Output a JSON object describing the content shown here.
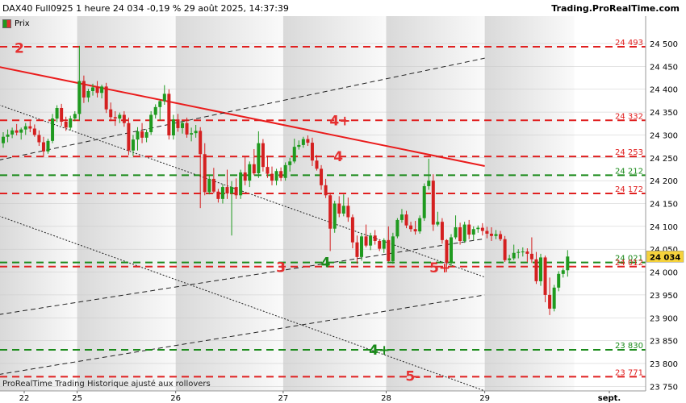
{
  "header": {
    "title": "DAX40 Full0925 1 heure 24 034 -0,19 % 29 août 2025, 14:37:39",
    "brand": "Trading.ProRealTime.com",
    "legend_label": "Prix"
  },
  "footer": {
    "text": "ProRealTime Trading  Historique ajusté aux rollovers"
  },
  "colors": {
    "up": "#1f9a1f",
    "down": "#d42020",
    "red_level": "#e02020",
    "green_level": "#1a8a1a"
  },
  "chart_data": {
    "type": "candlestick",
    "x_labels": [
      "22",
      "25",
      "26",
      "27",
      "28",
      "29",
      "sept."
    ],
    "y_ticks": [
      "24 500",
      "24 450",
      "24 400",
      "24 350",
      "24 300",
      "24 250",
      "24 200",
      "24 150",
      "24 100",
      "24 050",
      "24 000",
      "23 950",
      "23 900",
      "23 850",
      "23 800",
      "23 750"
    ],
    "ylim": [
      23740,
      24560
    ],
    "last_price": {
      "label": "24 034",
      "value": 24034
    },
    "horizontal_levels": [
      {
        "value": 24493,
        "label": "24 493",
        "color": "red"
      },
      {
        "value": 24332,
        "label": "24 332",
        "color": "red"
      },
      {
        "value": 24253,
        "label": "24 253",
        "color": "red"
      },
      {
        "value": 24212,
        "label": "24 212",
        "color": "green"
      },
      {
        "value": 24172,
        "label": "24 172",
        "color": "red"
      },
      {
        "value": 24021,
        "label": "24 021",
        "color": "green"
      },
      {
        "value": 24012,
        "label": "24 012",
        "color": "red"
      },
      {
        "value": 23830,
        "label": "23 830",
        "color": "green"
      },
      {
        "value": 23771,
        "label": "23 771",
        "color": "red"
      }
    ],
    "annotations": [
      {
        "text": "2",
        "color": "red",
        "x": 3.6,
        "y": 24490
      },
      {
        "text": "4+",
        "color": "red",
        "x": 75.2,
        "y": 24332
      },
      {
        "text": "4",
        "color": "red",
        "x": 74.8,
        "y": 24253
      },
      {
        "text": "3",
        "color": "red",
        "x": 62,
        "y": 24011
      },
      {
        "text": "4",
        "color": "green",
        "x": 72,
        "y": 24021
      },
      {
        "text": "5+",
        "color": "red",
        "x": 97.5,
        "y": 24010
      },
      {
        "text": "4+",
        "color": "green",
        "x": 84,
        "y": 23830
      },
      {
        "text": "5-",
        "color": "red",
        "x": 91.5,
        "y": 23773
      }
    ],
    "trendlines": [
      {
        "style": "solid-red",
        "from": [
          -1,
          24449
        ],
        "to": [
          107.5,
          24232
        ]
      },
      {
        "style": "dash-black",
        "from": [
          -1,
          24245
        ],
        "to": [
          107.5,
          24468
        ]
      },
      {
        "style": "dash-black",
        "from": [
          -1,
          23907
        ],
        "to": [
          107.5,
          24073
        ]
      },
      {
        "style": "dash-black",
        "from": [
          -1,
          23776
        ],
        "to": [
          107.5,
          23950
        ]
      },
      {
        "style": "dot-black",
        "from": [
          -1,
          24366
        ],
        "to": [
          107.5,
          23989
        ]
      },
      {
        "style": "dot-black",
        "from": [
          -1,
          24123
        ],
        "to": [
          107.5,
          23740
        ]
      }
    ],
    "candles": [
      [
        24282,
        24306,
        24272,
        24296
      ],
      [
        24296,
        24312,
        24284,
        24301
      ],
      [
        24301,
        24316,
        24293,
        24310
      ],
      [
        24310,
        24324,
        24299,
        24305
      ],
      [
        24305,
        24316,
        24290,
        24312
      ],
      [
        24312,
        24326,
        24300,
        24319
      ],
      [
        24319,
        24330,
        24306,
        24314
      ],
      [
        24314,
        24323,
        24296,
        24300
      ],
      [
        24300,
        24310,
        24276,
        24284
      ],
      [
        24284,
        24296,
        24252,
        24264
      ],
      [
        24264,
        24292,
        24259,
        24287
      ],
      [
        24287,
        24346,
        24282,
        24336
      ],
      [
        24336,
        24365,
        24328,
        24359
      ],
      [
        24359,
        24368,
        24320,
        24329
      ],
      [
        24329,
        24340,
        24309,
        24316
      ],
      [
        24316,
        24342,
        24310,
        24336
      ],
      [
        24336,
        24352,
        24330,
        24346
      ],
      [
        24346,
        24495,
        24332,
        24418
      ],
      [
        24418,
        24430,
        24370,
        24382
      ],
      [
        24382,
        24401,
        24372,
        24396
      ],
      [
        24396,
        24412,
        24386,
        24404
      ],
      [
        24404,
        24418,
        24382,
        24392
      ],
      [
        24392,
        24410,
        24380,
        24406
      ],
      [
        24406,
        24414,
        24348,
        24356
      ],
      [
        24356,
        24371,
        24330,
        24339
      ],
      [
        24339,
        24352,
        24320,
        24336
      ],
      [
        24336,
        24349,
        24326,
        24344
      ],
      [
        24344,
        24352,
        24318,
        24326
      ],
      [
        24326,
        24338,
        24256,
        24266
      ],
      [
        24266,
        24300,
        24254,
        24290
      ],
      [
        24290,
        24317,
        24266,
        24308
      ],
      [
        24308,
        24326,
        24282,
        24294
      ],
      [
        24294,
        24312,
        24284,
        24306
      ],
      [
        24306,
        24352,
        24300,
        24344
      ],
      [
        24344,
        24367,
        24336,
        24361
      ],
      [
        24361,
        24377,
        24332,
        24374
      ],
      [
        24374,
        24409,
        24366,
        24390
      ],
      [
        24390,
        24400,
        24290,
        24299
      ],
      [
        24299,
        24344,
        24290,
        24334
      ],
      [
        24334,
        24346,
        24307,
        24315
      ],
      [
        24315,
        24331,
        24303,
        24326
      ],
      [
        24326,
        24338,
        24294,
        24301
      ],
      [
        24301,
        24316,
        24286,
        24304
      ],
      [
        24304,
        24322,
        24294,
        24309
      ],
      [
        24309,
        24317,
        24140,
        24258
      ],
      [
        24258,
        24282,
        24168,
        24175
      ],
      [
        24175,
        24212,
        24170,
        24204
      ],
      [
        24204,
        24228,
        24172,
        24176
      ],
      [
        24176,
        24182,
        24152,
        24160
      ],
      [
        24160,
        24192,
        24150,
        24186
      ],
      [
        24186,
        24224,
        24160,
        24172
      ],
      [
        24172,
        24199,
        24080,
        24186
      ],
      [
        24186,
        24205,
        24160,
        24168
      ],
      [
        24168,
        24224,
        24160,
        24218
      ],
      [
        24218,
        24252,
        24190,
        24200
      ],
      [
        24200,
        24242,
        24186,
        24236
      ],
      [
        24236,
        24269,
        24212,
        24216
      ],
      [
        24216,
        24308,
        24206,
        24282
      ],
      [
        24282,
        24291,
        24220,
        24230
      ],
      [
        24230,
        24255,
        24206,
        24215
      ],
      [
        24215,
        24231,
        24190,
        24200
      ],
      [
        24200,
        24226,
        24190,
        24221
      ],
      [
        24221,
        24229,
        24199,
        24206
      ],
      [
        24206,
        24240,
        24200,
        24234
      ],
      [
        24234,
        24250,
        24220,
        24242
      ],
      [
        24242,
        24292,
        24238,
        24274
      ],
      [
        24274,
        24288,
        24268,
        24278
      ],
      [
        24278,
        24296,
        24272,
        24291
      ],
      [
        24291,
        24299,
        24276,
        24283
      ],
      [
        24283,
        24294,
        24232,
        24244
      ],
      [
        24244,
        24256,
        24222,
        24226
      ],
      [
        24226,
        24234,
        24180,
        24190
      ],
      [
        24190,
        24204,
        24162,
        24168
      ],
      [
        24168,
        24174,
        24046,
        24095
      ],
      [
        24095,
        24156,
        24086,
        24150
      ],
      [
        24150,
        24166,
        24120,
        24128
      ],
      [
        24128,
        24170,
        24122,
        24145
      ],
      [
        24145,
        24163,
        24110,
        24120
      ],
      [
        24120,
        24126,
        24052,
        24065
      ],
      [
        24065,
        24080,
        24018,
        24033
      ],
      [
        24033,
        24085,
        24025,
        24078
      ],
      [
        24078,
        24104,
        24054,
        24058
      ],
      [
        24058,
        24086,
        24048,
        24080
      ],
      [
        24080,
        24092,
        24060,
        24068
      ],
      [
        24068,
        24072,
        24046,
        24051
      ],
      [
        24051,
        24074,
        24042,
        24070
      ],
      [
        24070,
        24100,
        24023,
        24024
      ],
      [
        24024,
        24086,
        24018,
        24078
      ],
      [
        24078,
        24118,
        24074,
        24114
      ],
      [
        24114,
        24138,
        24108,
        24126
      ],
      [
        24126,
        24134,
        24096,
        24102
      ],
      [
        24102,
        24110,
        24088,
        24094
      ],
      [
        24094,
        24112,
        24082,
        24089
      ],
      [
        24089,
        24124,
        24084,
        24118
      ],
      [
        24118,
        24194,
        24112,
        24188
      ],
      [
        24188,
        24248,
        24180,
        24200
      ],
      [
        24200,
        24214,
        24090,
        24104
      ],
      [
        24104,
        24132,
        24100,
        24110
      ],
      [
        24110,
        24118,
        24062,
        24070
      ],
      [
        24070,
        24072,
        24000,
        24020
      ],
      [
        24020,
        24083,
        24012,
        24076
      ],
      [
        24076,
        24124,
        24072,
        24098
      ],
      [
        24098,
        24108,
        24060,
        24068
      ],
      [
        24068,
        24110,
        24064,
        24104
      ],
      [
        24104,
        24114,
        24072,
        24082
      ],
      [
        24082,
        24100,
        24070,
        24094
      ],
      [
        24094,
        24102,
        24086,
        24097
      ],
      [
        24097,
        24107,
        24080,
        24090
      ],
      [
        24090,
        24099,
        24074,
        24084
      ],
      [
        24084,
        24098,
        24068,
        24079
      ],
      [
        24079,
        24092,
        24072,
        24083
      ],
      [
        24083,
        24090,
        24068,
        24072
      ],
      [
        24072,
        24079,
        24022,
        24026
      ],
      [
        24026,
        24038,
        24020,
        24030
      ],
      [
        24030,
        24060,
        24026,
        24042
      ],
      [
        24042,
        24050,
        24030,
        24044
      ],
      [
        24044,
        24054,
        24034,
        24045
      ],
      [
        24045,
        24052,
        24022,
        24040
      ],
      [
        24040,
        24076,
        24020,
        24028
      ],
      [
        24028,
        24044,
        23974,
        23980
      ],
      [
        23980,
        24040,
        23970,
        24032
      ],
      [
        24032,
        24036,
        23934,
        23950
      ],
      [
        23950,
        23988,
        23906,
        23920
      ],
      [
        23920,
        23972,
        23914,
        23966
      ],
      [
        23966,
        24002,
        23958,
        23996
      ],
      [
        23996,
        24008,
        23988,
        24004
      ],
      [
        24004,
        24048,
        23990,
        24034
      ]
    ]
  }
}
